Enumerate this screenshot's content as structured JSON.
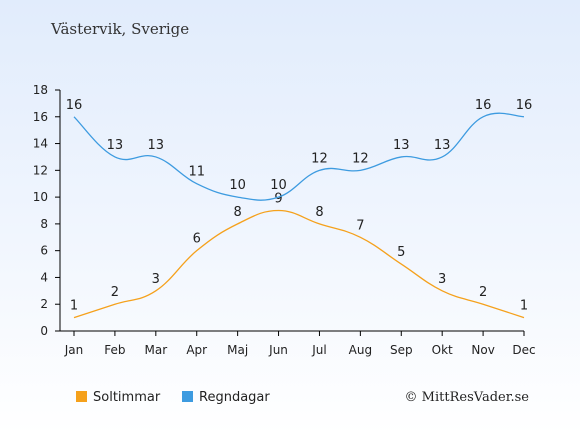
{
  "title": "Västervik, Sverige",
  "credit": "© MittResVader.se",
  "chart_data": {
    "type": "line",
    "categories": [
      "Jan",
      "Feb",
      "Mar",
      "Apr",
      "Maj",
      "Jun",
      "Jul",
      "Aug",
      "Sep",
      "Okt",
      "Nov",
      "Dec"
    ],
    "series": [
      {
        "name": "Soltimmar",
        "color": "#f5a11c",
        "values": [
          1,
          2,
          3,
          6,
          8,
          9,
          8,
          7,
          5,
          3,
          2,
          1
        ]
      },
      {
        "name": "Regndagar",
        "color": "#3d9be0",
        "values": [
          16,
          13,
          13,
          11,
          10,
          10,
          12,
          12,
          13,
          13,
          16,
          16
        ]
      }
    ],
    "ylim": [
      0,
      18
    ],
    "yticks": [
      0,
      2,
      4,
      6,
      8,
      10,
      12,
      14,
      16,
      18
    ],
    "grid": false,
    "legend_position": "bottom-left"
  }
}
